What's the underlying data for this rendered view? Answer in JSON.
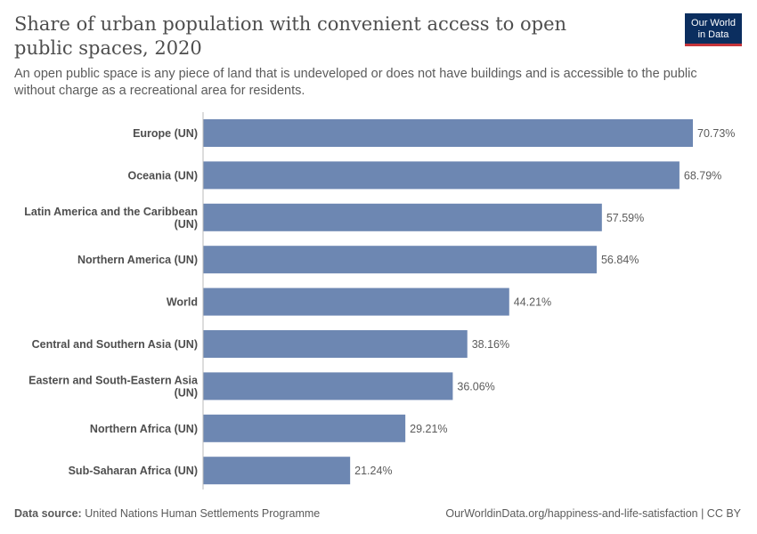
{
  "header": {
    "title": "Share of urban population with convenient access to open public spaces, 2020",
    "subtitle": "An open public space is any piece of land that is undeveloped or does not have buildings and is accessible to the public without charge as a recreational area for residents."
  },
  "logo": {
    "line1": "Our World",
    "line2": "in Data",
    "bg_color": "#0b2e5f",
    "accent_color": "#c5343a"
  },
  "footer": {
    "source_label": "Data source:",
    "source_text": "United Nations Human Settlements Programme",
    "url_text": "OurWorldinData.org/happiness-and-life-satisfaction | CC BY"
  },
  "chart_data": {
    "type": "bar",
    "orientation": "horizontal",
    "title": "Share of urban population with convenient access to open public spaces, 2020",
    "subtitle": "An open public space is any piece of land that is undeveloped or does not have buildings and is accessible to the public without charge as a recreational area for residents.",
    "categories": [
      [
        "Europe (UN)"
      ],
      [
        "Oceania (UN)"
      ],
      [
        "Latin America and the Caribbean",
        "(UN)"
      ],
      [
        "Northern America (UN)"
      ],
      [
        "World"
      ],
      [
        "Central and Southern Asia (UN)"
      ],
      [
        "Eastern and South-Eastern Asia",
        "(UN)"
      ],
      [
        "Northern Africa (UN)"
      ],
      [
        "Sub-Saharan Africa (UN)"
      ]
    ],
    "values": [
      70.73,
      68.79,
      57.59,
      56.84,
      44.21,
      38.16,
      36.06,
      29.21,
      21.24
    ],
    "value_labels": [
      "70.73%",
      "68.79%",
      "57.59%",
      "56.84%",
      "44.21%",
      "38.16%",
      "36.06%",
      "29.21%",
      "21.24%"
    ],
    "unit": "%",
    "xlim": [
      0,
      70.73
    ],
    "bar_color": "#6d87b2",
    "grid": false
  }
}
